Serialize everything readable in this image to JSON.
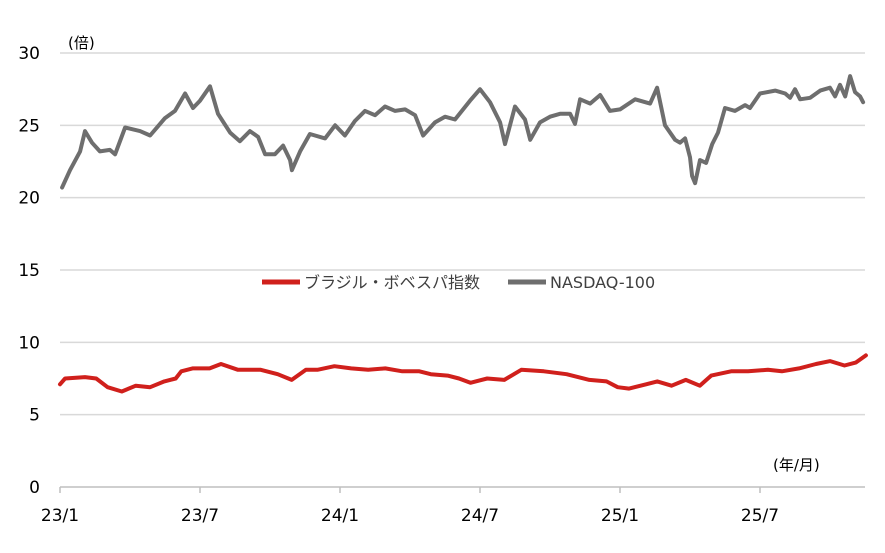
{
  "chart_data": {
    "type": "line",
    "title": "",
    "ylabel": "(倍)",
    "xlabel": "(年/月)",
    "ylim": [
      0,
      30
    ],
    "yticks": [
      0,
      5,
      10,
      15,
      20,
      25,
      30
    ],
    "xlim": [
      0,
      34.5
    ],
    "xunit": "months since 23/1",
    "xticks": [
      {
        "value": 0,
        "label": "23/1"
      },
      {
        "value": 6,
        "label": "23/7"
      },
      {
        "value": 12,
        "label": "24/1"
      },
      {
        "value": 18,
        "label": "24/7"
      },
      {
        "value": 24,
        "label": "25/1"
      },
      {
        "value": 30,
        "label": "25/7"
      }
    ],
    "grid": true,
    "legend_position": "center",
    "series": [
      {
        "name": "ブラジル・ボベスパ指数",
        "color": "#d0201c",
        "x": [
          0,
          0.22,
          1.07,
          1.55,
          2.04,
          2.65,
          3.25,
          3.86,
          4.47,
          4.96,
          5.2,
          5.68,
          6.41,
          6.9,
          7.63,
          8.6,
          9.33,
          9.93,
          10.54,
          11.03,
          11.76,
          12.48,
          13.21,
          13.94,
          14.67,
          15.4,
          15.89,
          16.61,
          17.1,
          17.59,
          18.31,
          19.04,
          19.77,
          20.74,
          21.71,
          22.69,
          23.42,
          23.9,
          24.39,
          25.12,
          25.6,
          26.21,
          26.82,
          27.42,
          27.91,
          28.76,
          29.49,
          30.34,
          30.94,
          31.67,
          32.4,
          33.01,
          33.62,
          34.1,
          34.54
        ],
        "y": [
          7.1,
          7.5,
          7.6,
          7.5,
          6.9,
          6.6,
          7.0,
          6.9,
          7.3,
          7.5,
          8.0,
          8.2,
          8.2,
          8.5,
          8.1,
          8.1,
          7.8,
          7.4,
          8.1,
          8.1,
          8.35,
          8.2,
          8.1,
          8.2,
          8.0,
          8.0,
          7.8,
          7.7,
          7.5,
          7.2,
          7.5,
          7.4,
          8.1,
          8.0,
          7.8,
          7.4,
          7.3,
          6.9,
          6.8,
          7.1,
          7.3,
          7.0,
          7.4,
          7.0,
          7.7,
          8.0,
          8.0,
          8.1,
          8.0,
          8.2,
          8.5,
          8.7,
          8.4,
          8.6,
          9.1
        ]
      },
      {
        "name": "NASDAQ-100",
        "color": "#6e6e6e",
        "x": [
          0.09,
          0.43,
          0.86,
          1.07,
          1.37,
          1.71,
          2.14,
          2.36,
          2.79,
          3.43,
          3.86,
          4.5,
          4.93,
          5.36,
          5.7,
          6.0,
          6.43,
          6.77,
          7.29,
          7.71,
          8.14,
          8.49,
          8.79,
          9.21,
          9.56,
          9.86,
          9.94,
          10.29,
          10.71,
          11.36,
          11.79,
          12.21,
          12.64,
          13.07,
          13.5,
          13.93,
          14.36,
          14.79,
          15.22,
          15.56,
          16.07,
          16.5,
          16.93,
          17.57,
          18.0,
          18.43,
          18.86,
          19.07,
          19.5,
          19.93,
          20.15,
          20.57,
          21.0,
          21.43,
          21.86,
          22.07,
          22.29,
          22.72,
          23.15,
          23.57,
          24.0,
          24.65,
          25.29,
          25.59,
          25.93,
          26.36,
          26.57,
          26.79,
          27.0,
          27.09,
          27.22,
          27.43,
          27.69,
          27.95,
          28.2,
          28.5,
          28.93,
          29.36,
          29.57,
          30.0,
          30.65,
          31.08,
          31.29,
          31.5,
          31.72,
          32.15,
          32.58,
          33.0,
          33.22,
          33.43,
          33.65,
          33.86,
          34.07,
          34.29,
          34.42
        ],
        "y": [
          20.7,
          21.9,
          23.2,
          24.6,
          23.8,
          23.2,
          23.3,
          23.0,
          24.85,
          24.6,
          24.3,
          25.5,
          26.0,
          27.2,
          26.2,
          26.7,
          27.7,
          25.8,
          24.5,
          23.9,
          24.6,
          24.2,
          23.0,
          23.0,
          23.6,
          22.6,
          21.9,
          23.2,
          24.4,
          24.1,
          25.0,
          24.3,
          25.3,
          26.0,
          25.7,
          26.3,
          26.0,
          26.1,
          25.7,
          24.3,
          25.2,
          25.6,
          25.4,
          26.7,
          27.5,
          26.6,
          25.2,
          23.7,
          26.3,
          25.4,
          24.0,
          25.2,
          25.6,
          25.8,
          25.8,
          25.1,
          26.8,
          26.5,
          27.1,
          26.0,
          26.1,
          26.8,
          26.5,
          27.6,
          25.0,
          24.0,
          23.8,
          24.1,
          22.8,
          21.5,
          21.0,
          22.6,
          22.4,
          23.7,
          24.5,
          26.2,
          26.0,
          26.4,
          26.2,
          27.2,
          27.4,
          27.2,
          26.9,
          27.5,
          26.8,
          26.9,
          27.4,
          27.6,
          27.0,
          27.8,
          27.0,
          28.4,
          27.3,
          27.0,
          26.6
        ]
      }
    ]
  }
}
